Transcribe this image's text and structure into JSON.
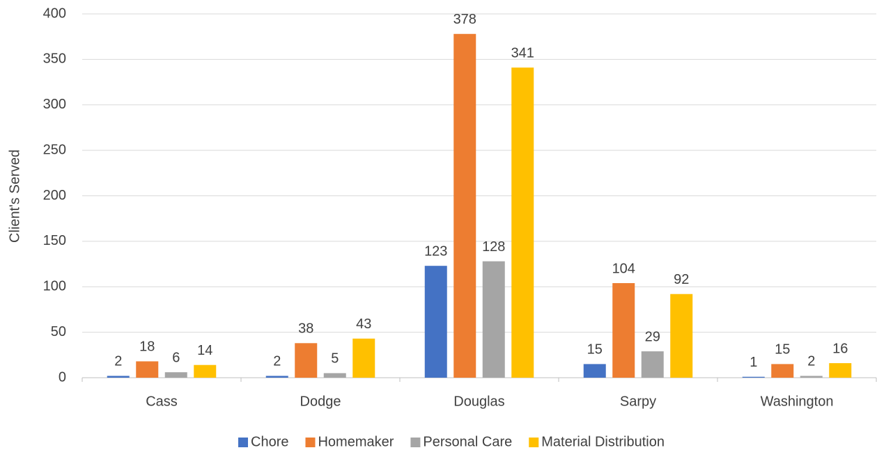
{
  "chart_data": {
    "type": "bar",
    "y_label": "Client's Served",
    "categories": [
      "Cass",
      "Dodge",
      "Douglas",
      "Sarpy",
      "Washington"
    ],
    "series": [
      {
        "name": "Chore",
        "color": "#4472c4",
        "values": [
          2,
          2,
          123,
          15,
          1
        ]
      },
      {
        "name": "Homemaker",
        "color": "#ed7d31",
        "values": [
          18,
          38,
          378,
          104,
          15
        ]
      },
      {
        "name": "Personal Care",
        "color": "#a5a5a5",
        "values": [
          6,
          5,
          128,
          29,
          2
        ]
      },
      {
        "name": "Material Distribution",
        "color": "#ffc000",
        "values": [
          14,
          43,
          341,
          92,
          16
        ]
      }
    ],
    "ylim": [
      0,
      400
    ],
    "yticks": [
      0,
      50,
      100,
      150,
      200,
      250,
      300,
      350,
      400
    ],
    "grid": true,
    "legend": "bottom"
  }
}
